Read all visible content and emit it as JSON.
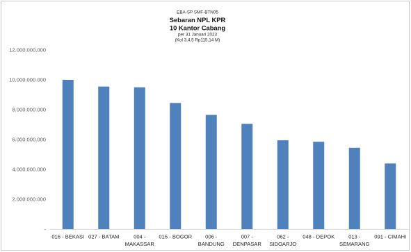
{
  "chart_data": {
    "type": "bar",
    "header": {
      "code": "EBA-SP SMF-BTN05",
      "title_lines": [
        "Sebaran NPL KPR",
        "10 Kantor Cabang"
      ],
      "date": "per 31 Januari 2023",
      "note": "(Kol 3,4,5 Rp115,14 M)"
    },
    "categories": [
      "016 - BEKASI",
      "027 - BATAM",
      "004 - MAKASSAR",
      "015 - BOGOR",
      "006 - BANDUNG",
      "007 - DENPASAR",
      "062 - SIDOARJO",
      "048 - DEPOK",
      "013 - SEMARANG",
      "091 - CIMAHI"
    ],
    "values": [
      10000000000,
      9550000000,
      9500000000,
      8450000000,
      7650000000,
      7050000000,
      5950000000,
      5850000000,
      5450000000,
      4400000000
    ],
    "ylim": [
      0,
      12000000000
    ],
    "yticks": [
      0,
      2000000000,
      4000000000,
      6000000000,
      8000000000,
      10000000000,
      12000000000
    ],
    "ytick_labels": [
      "-",
      "2.000.000.000",
      "4.000.000.000",
      "6.000.000.000",
      "8.000.000.000",
      "10.000.000.000",
      "12.000.000.000"
    ],
    "grid": false,
    "legend": "none",
    "bar_color": "#4f81bd",
    "axis_color": "#d9d9d9",
    "border_color": "#c8c8c8"
  }
}
